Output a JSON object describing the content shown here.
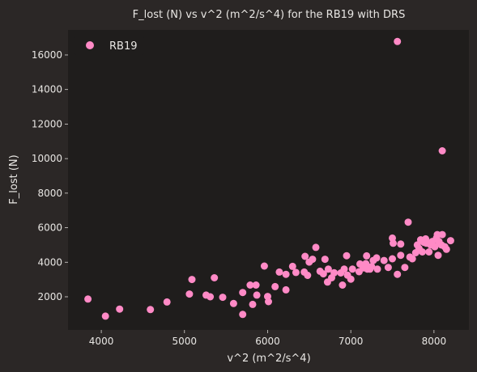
{
  "chart_data": {
    "type": "scatter",
    "title": "F_lost (N) vs v^2 (m^2/s^4) for the RB19 with DRS",
    "xlabel": "v^2 (m^2/s^4)",
    "ylabel": "F_lost (N)",
    "xlim": [
      3600,
      8420
    ],
    "ylim": [
      80,
      17450
    ],
    "xticks": [
      4000,
      5000,
      6000,
      7000,
      8000
    ],
    "yticks": [
      2000,
      4000,
      6000,
      8000,
      10000,
      12000,
      14000,
      16000
    ],
    "grid": false,
    "legend": "top-left",
    "colors": {
      "background": "#2b2726",
      "plot_area": "#1f1d1c",
      "point": "#ff8ac6",
      "text": "#e8e6e3"
    },
    "series": [
      {
        "name": "RB19",
        "points": [
          [
            3840,
            1870
          ],
          [
            4050,
            880
          ],
          [
            4220,
            1290
          ],
          [
            4590,
            1260
          ],
          [
            4790,
            1700
          ],
          [
            5060,
            2160
          ],
          [
            5090,
            3000
          ],
          [
            5260,
            2100
          ],
          [
            5310,
            2000
          ],
          [
            5360,
            3100
          ],
          [
            5460,
            1970
          ],
          [
            5590,
            1610
          ],
          [
            5700,
            2250
          ],
          [
            5700,
            980
          ],
          [
            5790,
            2680
          ],
          [
            5820,
            1560
          ],
          [
            5860,
            2680
          ],
          [
            5870,
            2100
          ],
          [
            5960,
            3780
          ],
          [
            6000,
            2020
          ],
          [
            6010,
            1720
          ],
          [
            6090,
            2590
          ],
          [
            6140,
            3430
          ],
          [
            6220,
            3300
          ],
          [
            6220,
            2400
          ],
          [
            6300,
            3760
          ],
          [
            6340,
            3410
          ],
          [
            6440,
            3430
          ],
          [
            6450,
            4340
          ],
          [
            6480,
            3240
          ],
          [
            6500,
            4010
          ],
          [
            6540,
            4170
          ],
          [
            6580,
            4860
          ],
          [
            6630,
            3480
          ],
          [
            6670,
            3330
          ],
          [
            6690,
            4170
          ],
          [
            6720,
            2850
          ],
          [
            6730,
            3600
          ],
          [
            6770,
            3100
          ],
          [
            6800,
            3390
          ],
          [
            6880,
            3380
          ],
          [
            6900,
            2680
          ],
          [
            6920,
            3600
          ],
          [
            6950,
            4380
          ],
          [
            6960,
            3250
          ],
          [
            7000,
            3020
          ],
          [
            7020,
            3600
          ],
          [
            7100,
            3450
          ],
          [
            7110,
            3900
          ],
          [
            7150,
            3670
          ],
          [
            7180,
            3920
          ],
          [
            7190,
            4370
          ],
          [
            7200,
            3600
          ],
          [
            7230,
            3600
          ],
          [
            7250,
            3750
          ],
          [
            7270,
            4100
          ],
          [
            7310,
            4250
          ],
          [
            7320,
            3600
          ],
          [
            7400,
            4100
          ],
          [
            7450,
            3700
          ],
          [
            7500,
            4200
          ],
          [
            7500,
            5400
          ],
          [
            7510,
            5100
          ],
          [
            7560,
            3300
          ],
          [
            7560,
            16780
          ],
          [
            7600,
            5050
          ],
          [
            7600,
            4400
          ],
          [
            7650,
            3700
          ],
          [
            7690,
            6320
          ],
          [
            7710,
            4300
          ],
          [
            7740,
            4200
          ],
          [
            7780,
            4550
          ],
          [
            7800,
            5000
          ],
          [
            7820,
            4800
          ],
          [
            7840,
            5300
          ],
          [
            7860,
            4600
          ],
          [
            7880,
            5150
          ],
          [
            7900,
            5350
          ],
          [
            7910,
            5100
          ],
          [
            7940,
            4600
          ],
          [
            7960,
            5000
          ],
          [
            7980,
            5200
          ],
          [
            8010,
            4900
          ],
          [
            8030,
            5400
          ],
          [
            8040,
            5600
          ],
          [
            8050,
            4400
          ],
          [
            8060,
            5200
          ],
          [
            8090,
            5000
          ],
          [
            8100,
            5600
          ],
          [
            8100,
            10450
          ],
          [
            8130,
            4900
          ],
          [
            8150,
            4750
          ],
          [
            8200,
            5250
          ]
        ]
      }
    ]
  }
}
